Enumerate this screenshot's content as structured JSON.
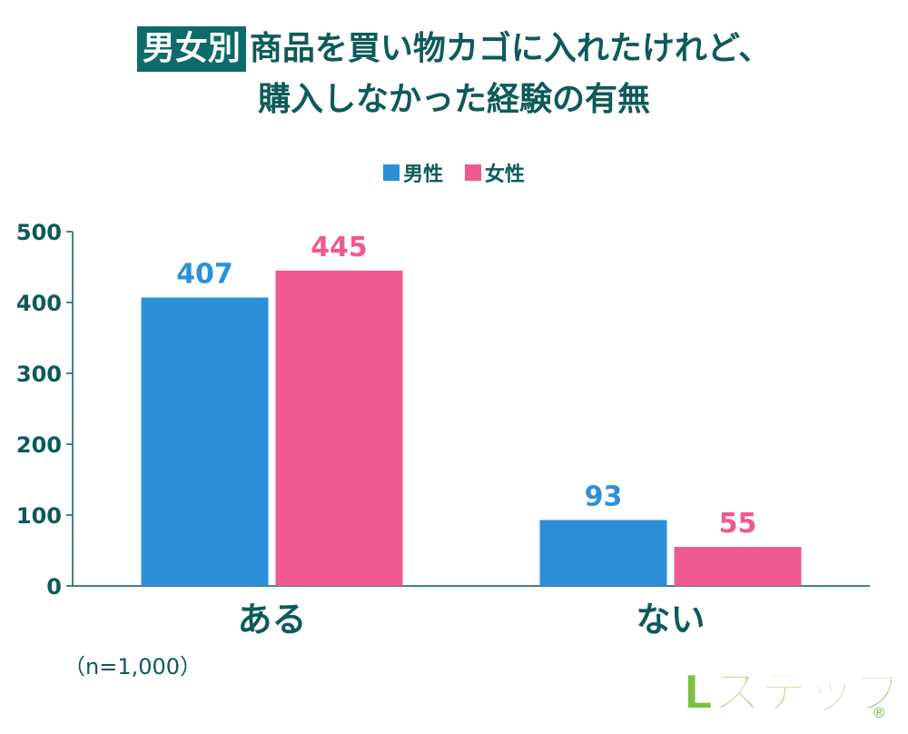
{
  "title": {
    "badge": "男女別",
    "line1": "商品を買い物カゴに入れたけれど、",
    "line2": "購入しなかった経験の有無"
  },
  "note": "（n=1,000）",
  "logo_text": "Lステップ",
  "colors": {
    "male": "#2b90d9",
    "female": "#ee5a8f",
    "text": "#0e5a5a",
    "axis": "#0e5a5a"
  },
  "chart_data": {
    "type": "bar",
    "categories": [
      "ある",
      "ない"
    ],
    "series": [
      {
        "name": "男性",
        "values": [
          407,
          93
        ]
      },
      {
        "name": "女性",
        "values": [
          445,
          55
        ]
      }
    ],
    "ylim": [
      0,
      500
    ],
    "yticks": [
      0,
      100,
      200,
      300,
      400,
      500
    ],
    "legend": "top-center",
    "grid": false
  }
}
